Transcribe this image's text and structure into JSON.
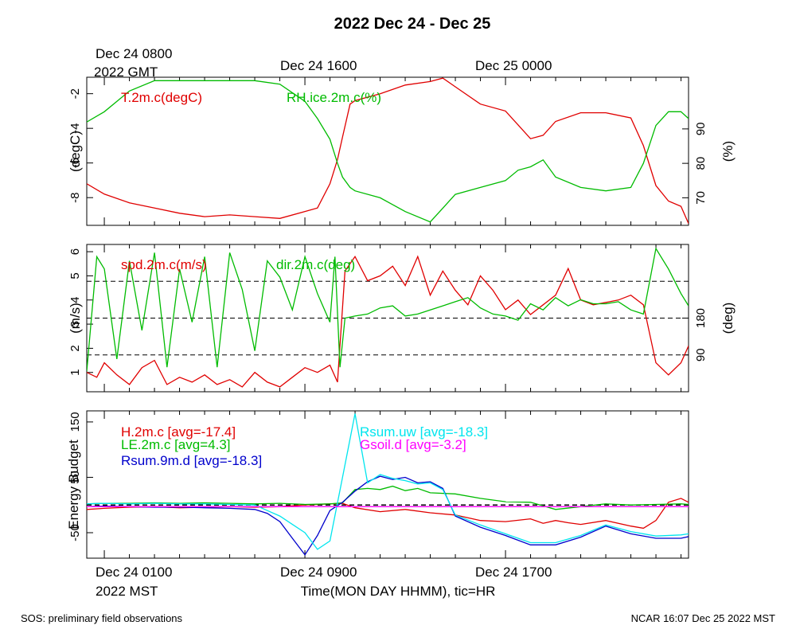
{
  "figure": {
    "title": "2022 Dec 24 - Dec 25",
    "top_time_labels": [
      "Dec 24 0800",
      "Dec 24 1600",
      "Dec 25 0000"
    ],
    "top_time_zone": "2022 GMT",
    "bottom_time_labels": [
      "Dec 24 0100",
      "Dec 24 0900",
      "Dec 24 1700"
    ],
    "bottom_time_zone": "2022 MST",
    "xlabel": "Time(MON DAY HHMM), tic=HR",
    "footer_left": "SOS: preliminary field observations",
    "footer_right": "NCAR 16:07 Dec 25 2022 MST"
  },
  "chart_data": [
    {
      "type": "line",
      "panel": "temperature-humidity",
      "x_unit": "hours since Dec 24 0000 MST",
      "xlim": [
        -0.7,
        23.3
      ],
      "y_left": {
        "label": "(degC)",
        "lim": [
          -9.6,
          -1.05
        ],
        "ticks": [
          -8,
          -6,
          -4,
          -2
        ]
      },
      "y_right": {
        "label": "(%)",
        "lim": [
          62,
          105
        ],
        "ticks": [
          70,
          80,
          90
        ]
      },
      "series": [
        {
          "name": "T.2m.c(degC)",
          "axis": "left",
          "color": "#e00000",
          "x": [
            -0.7,
            0,
            1,
            2,
            3,
            4,
            5,
            6,
            7,
            8,
            8.5,
            9,
            9.3,
            9.5,
            9.8,
            10,
            11,
            12,
            13,
            13.5,
            14,
            15,
            16,
            16.5,
            17,
            17.5,
            18,
            19,
            20,
            21,
            21.5,
            22,
            22.5,
            23,
            23.3
          ],
          "y": [
            -7.2,
            -7.8,
            -8.3,
            -8.6,
            -8.9,
            -9.1,
            -9.0,
            -9.1,
            -9.2,
            -8.8,
            -8.6,
            -7.2,
            -5.8,
            -4.5,
            -2.6,
            -2.4,
            -2.0,
            -1.5,
            -1.3,
            -1.1,
            -1.6,
            -2.6,
            -3.0,
            -3.8,
            -4.6,
            -4.4,
            -3.6,
            -3.1,
            -3.1,
            -3.4,
            -5.0,
            -7.3,
            -8.2,
            -8.5,
            -9.5
          ]
        },
        {
          "name": "RH.ice.2m.c(%)",
          "axis": "right",
          "color": "#00bb00",
          "x": [
            -0.7,
            0,
            1,
            2,
            3,
            4,
            5,
            6,
            7,
            8,
            8.5,
            9,
            9.3,
            9.5,
            9.8,
            10,
            11,
            12,
            13,
            13.5,
            14,
            15,
            16,
            16.5,
            17,
            17.5,
            18,
            19,
            20,
            21,
            21.5,
            22,
            22.5,
            23,
            23.3
          ],
          "y": [
            92,
            95,
            101,
            104,
            104,
            104,
            104,
            104,
            103,
            98,
            93,
            87,
            80,
            76,
            73,
            72,
            70,
            66,
            63,
            67,
            71,
            73,
            75,
            78,
            79,
            81,
            76,
            73,
            72,
            73,
            80,
            91,
            95,
            95,
            93
          ]
        }
      ]
    },
    {
      "type": "line",
      "panel": "wind",
      "x_unit": "hours since Dec 24 0000 MST",
      "xlim": [
        -0.7,
        23.3
      ],
      "y_left": {
        "label": "(m/s)",
        "lim": [
          0.2,
          6.3
        ],
        "ticks": [
          1,
          2,
          3,
          4,
          5,
          6
        ]
      },
      "y_right": {
        "label": "(deg)",
        "ticks": [
          90,
          180
        ],
        "reference_lines": [
          "dashed at 90",
          "dashed at 180",
          "dashed at 270"
        ]
      },
      "series": [
        {
          "name": "spd.2m.c(m/s)",
          "axis": "left",
          "color": "#e00000",
          "x": [
            -0.7,
            -0.3,
            0,
            0.5,
            1,
            1.5,
            2,
            2.5,
            3,
            3.5,
            4,
            4.5,
            5,
            5.5,
            6,
            6.5,
            7,
            7.5,
            8,
            8.5,
            9,
            9.3,
            9.6,
            10,
            10.5,
            11,
            11.5,
            12,
            12.5,
            13,
            13.5,
            14,
            14.5,
            15,
            15.5,
            16,
            16.5,
            17,
            17.5,
            18,
            18.5,
            19,
            19.5,
            20,
            20.5,
            21,
            21.5,
            22,
            22.5,
            23,
            23.3
          ],
          "y": [
            1.0,
            0.8,
            1.4,
            0.9,
            0.5,
            1.2,
            1.5,
            0.5,
            0.8,
            0.6,
            0.9,
            0.5,
            0.7,
            0.4,
            1.0,
            0.6,
            0.4,
            0.8,
            1.2,
            1.0,
            1.3,
            0.6,
            5.2,
            5.8,
            4.8,
            5.0,
            5.4,
            4.6,
            5.8,
            4.2,
            5.2,
            4.4,
            3.8,
            5.0,
            4.4,
            3.6,
            4.0,
            3.4,
            3.8,
            4.2,
            5.3,
            4.0,
            3.8,
            3.9,
            4.0,
            4.2,
            3.8,
            1.4,
            0.9,
            1.4,
            2.1
          ]
        },
        {
          "name": "dir.2m.c(deg)",
          "axis": "right",
          "color": "#00bb00",
          "x": [
            -0.7,
            -0.3,
            0,
            0.5,
            1,
            1.5,
            2,
            2.5,
            3,
            3.5,
            4,
            4.5,
            5,
            5.5,
            6,
            6.5,
            7,
            7.5,
            8,
            8.5,
            9,
            9.2,
            9.4,
            9.6,
            10,
            10.5,
            11,
            11.5,
            12,
            12.5,
            13,
            13.5,
            14,
            14.5,
            15,
            15.5,
            16,
            16.5,
            17,
            17.5,
            18,
            18.5,
            19,
            19.5,
            20,
            20.5,
            21,
            21.5,
            22,
            22.5,
            23,
            23.3
          ],
          "y": [
            50,
            330,
            300,
            80,
            320,
            150,
            340,
            60,
            300,
            170,
            330,
            60,
            340,
            250,
            100,
            320,
            280,
            200,
            330,
            240,
            170,
            330,
            60,
            180,
            185,
            190,
            205,
            210,
            185,
            190,
            200,
            210,
            220,
            230,
            205,
            190,
            185,
            175,
            215,
            200,
            230,
            210,
            225,
            215,
            215,
            220,
            200,
            190,
            350,
            300,
            240,
            210
          ]
        }
      ]
    },
    {
      "type": "line",
      "panel": "energy-budget",
      "x_unit": "hours since Dec 24 0000 MST",
      "xlim": [
        -0.7,
        23.3
      ],
      "y_left": {
        "label": "Energy Budget",
        "lim": [
          -96,
          170
        ],
        "ticks": [
          -50,
          50,
          150
        ]
      },
      "reference_lines": [
        "dashed at 0"
      ],
      "series": [
        {
          "name": "H.2m.c [avg=-17.4]",
          "color": "#e00000",
          "x": [
            -0.7,
            0,
            1,
            2,
            3,
            4,
            5,
            6,
            7,
            8,
            9,
            9.5,
            10,
            11,
            12,
            13,
            14,
            15,
            16,
            17,
            17.5,
            18,
            18.5,
            19,
            20,
            21,
            21.5,
            22,
            22.5,
            23,
            23.3
          ],
          "y": [
            -8,
            -6,
            -4,
            -3,
            -5,
            -4,
            -3,
            -4,
            -3,
            0,
            2,
            3,
            -5,
            -12,
            -8,
            -14,
            -18,
            -28,
            -30,
            -25,
            -33,
            -28,
            -32,
            -35,
            -28,
            -38,
            -42,
            -28,
            5,
            12,
            5
          ]
        },
        {
          "name": "LE.2m.c [avg=4.3]",
          "color": "#00bb00",
          "x": [
            -0.7,
            0,
            1,
            2,
            3,
            4,
            5,
            6,
            7,
            8,
            9,
            9.5,
            10,
            10.5,
            11,
            11.5,
            12,
            12.5,
            13,
            14,
            15,
            16,
            17,
            18,
            19,
            20,
            21,
            22,
            23,
            23.3
          ],
          "y": [
            2,
            3,
            3,
            4,
            3,
            4,
            3,
            2,
            3,
            1,
            2,
            4,
            28,
            30,
            28,
            34,
            26,
            30,
            22,
            20,
            12,
            6,
            5,
            -8,
            -3,
            2,
            0,
            1,
            2,
            1
          ]
        },
        {
          "name": "Rsum.9m.d [avg=-18.3]",
          "color": "#0000cc",
          "x": [
            -0.7,
            0,
            1,
            2,
            3,
            4,
            5,
            6,
            6.5,
            7,
            7.5,
            8,
            8.5,
            9,
            9.5,
            10,
            10.5,
            11,
            11.5,
            12,
            12.5,
            13,
            13.5,
            14,
            15,
            16,
            17,
            18,
            19,
            20,
            21,
            22,
            23,
            23.3
          ],
          "y": [
            -3,
            -2,
            -3,
            -4,
            -4,
            -5,
            -6,
            -8,
            -15,
            -30,
            -60,
            -90,
            -55,
            -10,
            5,
            25,
            42,
            52,
            46,
            50,
            40,
            42,
            30,
            -20,
            -40,
            -55,
            -72,
            -72,
            -58,
            -38,
            -52,
            -60,
            -60,
            -57
          ]
        },
        {
          "name": "Rsum.uw [avg=-18.3]",
          "color": "#00e5ee",
          "x": [
            -0.7,
            0,
            1,
            2,
            3,
            4,
            5,
            6,
            6.5,
            7,
            7.5,
            8,
            8.5,
            9,
            9.5,
            10,
            10.5,
            11,
            11.5,
            12,
            12.5,
            13,
            13.5,
            14,
            15,
            16,
            17,
            18,
            19,
            20,
            21,
            22,
            23,
            23.3
          ],
          "y": [
            2,
            3,
            2,
            3,
            2,
            2,
            1,
            0,
            -10,
            -20,
            -35,
            -50,
            -80,
            -65,
            50,
            165,
            40,
            55,
            48,
            44,
            38,
            40,
            28,
            -18,
            -36,
            -52,
            -68,
            -68,
            -55,
            -36,
            -48,
            -56,
            -54,
            -52
          ]
        },
        {
          "name": "Gsoil.d [avg=-3.2]",
          "color": "#ff00ff",
          "x": [
            -0.7,
            23.3
          ],
          "y": [
            -3,
            -3
          ]
        }
      ]
    }
  ]
}
